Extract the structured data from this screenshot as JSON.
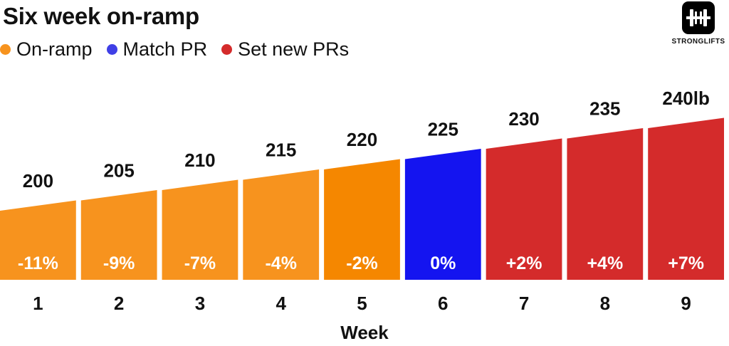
{
  "title": "Six week on-ramp",
  "legend": [
    {
      "label": "On-ramp",
      "color": "#f7931e"
    },
    {
      "label": "Match PR",
      "color": "#1414f0"
    },
    {
      "label": "Set new PRs",
      "color": "#d42b2b"
    }
  ],
  "logo": {
    "text": "STRONGLIFTS"
  },
  "chart_data": {
    "type": "bar",
    "title": "Six week on-ramp",
    "xlabel": "Week",
    "ylabel": "",
    "categories": [
      "1",
      "2",
      "3",
      "4",
      "5",
      "6",
      "7",
      "8",
      "9"
    ],
    "values": [
      200,
      205,
      210,
      215,
      220,
      225,
      230,
      235,
      240
    ],
    "value_labels": [
      "200",
      "205",
      "210",
      "215",
      "220",
      "225",
      "230",
      "235",
      "240lb"
    ],
    "percent_labels": [
      "-11%",
      "-9%",
      "-7%",
      "-4%",
      "-2%",
      "0%",
      "+2%",
      "+4%",
      "+7%"
    ],
    "phases": [
      "On-ramp",
      "On-ramp",
      "On-ramp",
      "On-ramp",
      "On-ramp",
      "Match PR",
      "Set new PRs",
      "Set new PRs",
      "Set new PRs"
    ],
    "bar_colors": [
      "#f7931e",
      "#f7931e",
      "#f7931e",
      "#f7931e",
      "#f58700",
      "#1414f0",
      "#d42b2b",
      "#d42b2b",
      "#d42b2b"
    ],
    "ylim": [
      0,
      240
    ],
    "grid": false,
    "legend_position": "top-left"
  }
}
